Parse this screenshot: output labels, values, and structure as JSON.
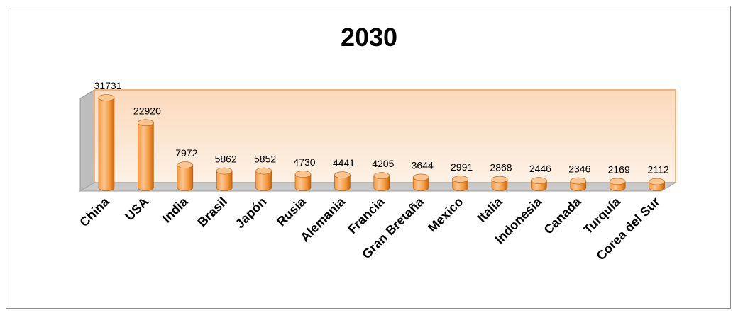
{
  "chart_data": {
    "type": "bar",
    "title": "2030",
    "categories": [
      "China",
      "USA",
      "India",
      "Brasil",
      "Japón",
      "Rusia",
      "Alemania",
      "Francia",
      "Gran Bretaña",
      "Mexico",
      "Italia",
      "Indonesia",
      "Canada",
      "Turquía",
      "Corea del Sur"
    ],
    "values": [
      31731,
      22920,
      7972,
      5862,
      5852,
      4730,
      4441,
      4205,
      3644,
      2991,
      2868,
      2446,
      2346,
      2169,
      2112
    ],
    "ylim": [
      0,
      35000
    ],
    "grid": false,
    "legend": "none",
    "colors": {
      "bar_light": "#fbc592",
      "bar_mid": "#f59a3e",
      "bar_dark": "#c8640f",
      "wall_top": "#fbd9bb",
      "wall_bottom": "#fdf1e6",
      "wall_border": "#f2a25c",
      "floor": "#c9c9c9",
      "side_wall": "#bdbdbd"
    }
  }
}
